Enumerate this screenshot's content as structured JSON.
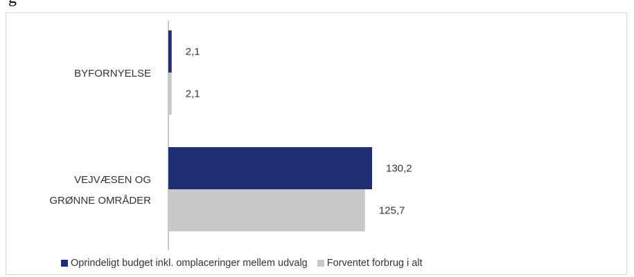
{
  "caption": "g",
  "chart_data": {
    "type": "bar",
    "orientation": "horizontal",
    "categories": [
      "BYFORNYELSE",
      "VEJVÆSEN OG GRØNNE OMRÅDER"
    ],
    "category_lines": [
      [
        "BYFORNYELSE"
      ],
      [
        "VEJVÆSEN OG",
        "GRØNNE OMRÅDER"
      ]
    ],
    "series": [
      {
        "name": "Oprindeligt budget inkl. omplaceringer mellem udvalg",
        "values": [
          2.1,
          130.2
        ],
        "labels": [
          "2,1",
          "130,2"
        ],
        "color": "#1f2f75"
      },
      {
        "name": "Forventet forbrug i alt",
        "values": [
          2.1,
          125.7
        ],
        "labels": [
          "2,1",
          "125,7"
        ],
        "color": "#c8c8c8"
      }
    ],
    "legend_position": "bottom",
    "gridlines": false
  }
}
